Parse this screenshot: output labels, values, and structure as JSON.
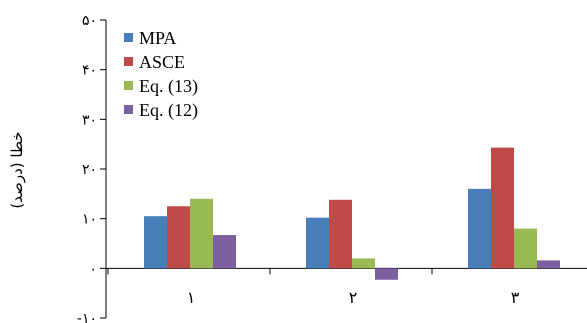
{
  "chart_data": {
    "type": "bar",
    "title": "",
    "xlabel": "",
    "ylabel": "خطا (درصد)",
    "categories": [
      "۱",
      "۲",
      "۳"
    ],
    "series": [
      {
        "name": "MPA",
        "color": "#4a7ebb",
        "values": [
          10.5,
          10.2,
          16.0
        ]
      },
      {
        "name": "ASCE",
        "color": "#be4b48",
        "values": [
          12.5,
          13.8,
          24.3
        ]
      },
      {
        "name": "Eq. (13)",
        "color": "#98b954",
        "values": [
          14.0,
          2.0,
          8.0
        ]
      },
      {
        "name": "Eq. (12)",
        "color": "#7d60a0",
        "values": [
          6.7,
          -2.3,
          1.6
        ]
      }
    ],
    "ylim": [
      -10,
      50
    ],
    "yticks": [
      -10,
      0,
      10,
      20,
      30,
      40,
      50
    ],
    "ytick_labels": [
      "-۱۰",
      "۰",
      "۱۰",
      "۲۰",
      "۳۰",
      "۴۰",
      "۵۰"
    ],
    "grid": false,
    "legend_position": "top-left"
  }
}
